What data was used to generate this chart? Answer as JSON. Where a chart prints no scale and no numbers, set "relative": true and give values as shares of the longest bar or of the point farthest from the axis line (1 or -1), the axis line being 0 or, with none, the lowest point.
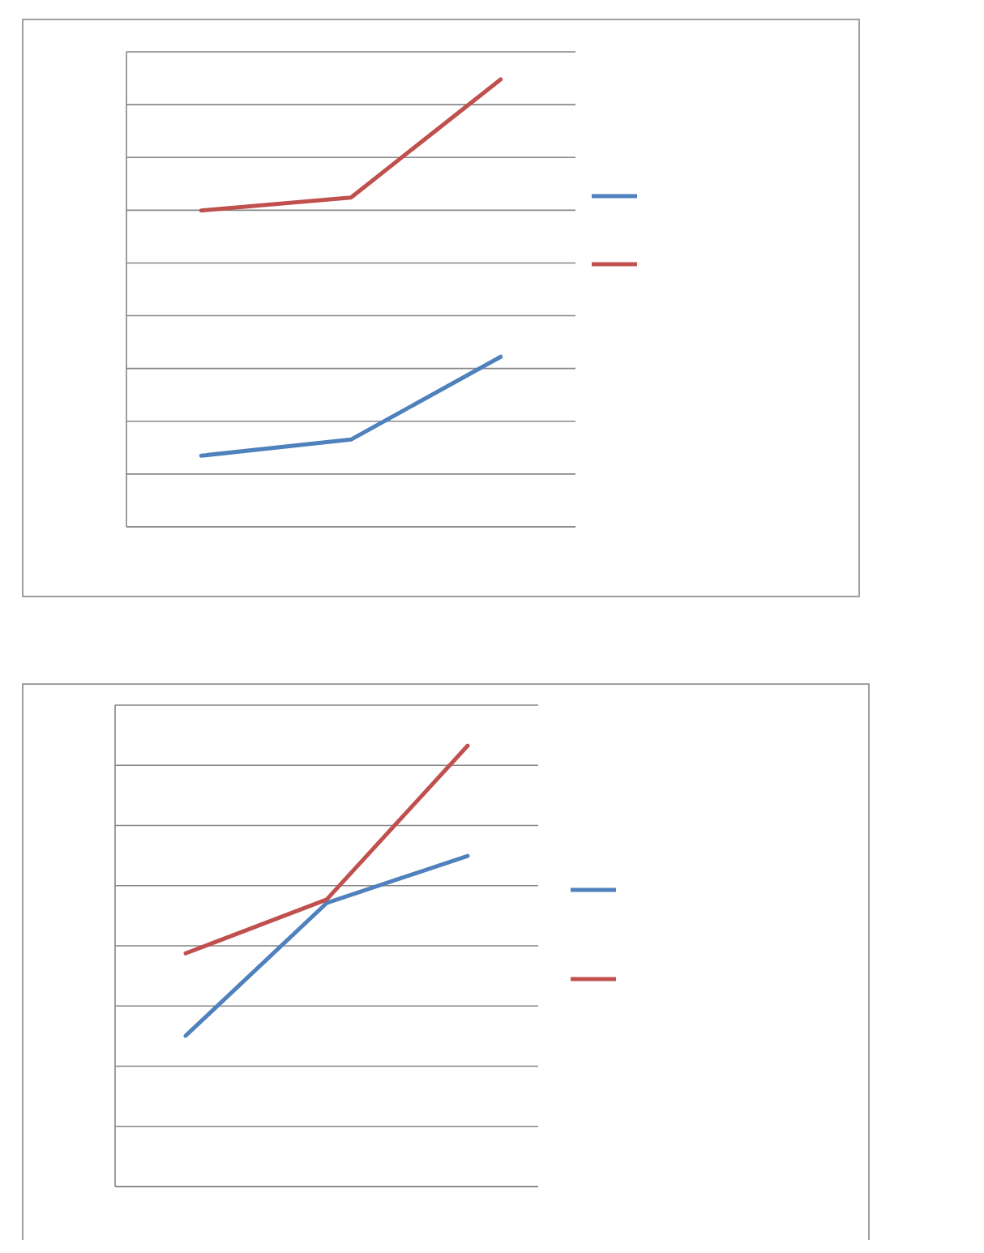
{
  "chart_data": [
    {
      "type": "line",
      "relative": true,
      "categories": [
        null,
        null,
        null
      ],
      "grid": "y",
      "series": [
        {
          "color": "#4f81bd",
          "values": [
            0.159,
            0.195,
            0.38
          ]
        },
        {
          "color": "#c0504d",
          "values": [
            0.707,
            0.736,
            1
          ]
        }
      ]
    },
    {
      "type": "line",
      "relative": true,
      "categories": [
        null,
        null,
        null
      ],
      "grid": "y",
      "series": [
        {
          "color": "#4f81bd",
          "values": [
            0.342,
            0.643,
            0.75
          ]
        },
        {
          "color": "#c0504d",
          "values": [
            0.529,
            0.651,
            1
          ]
        }
      ]
    }
  ]
}
